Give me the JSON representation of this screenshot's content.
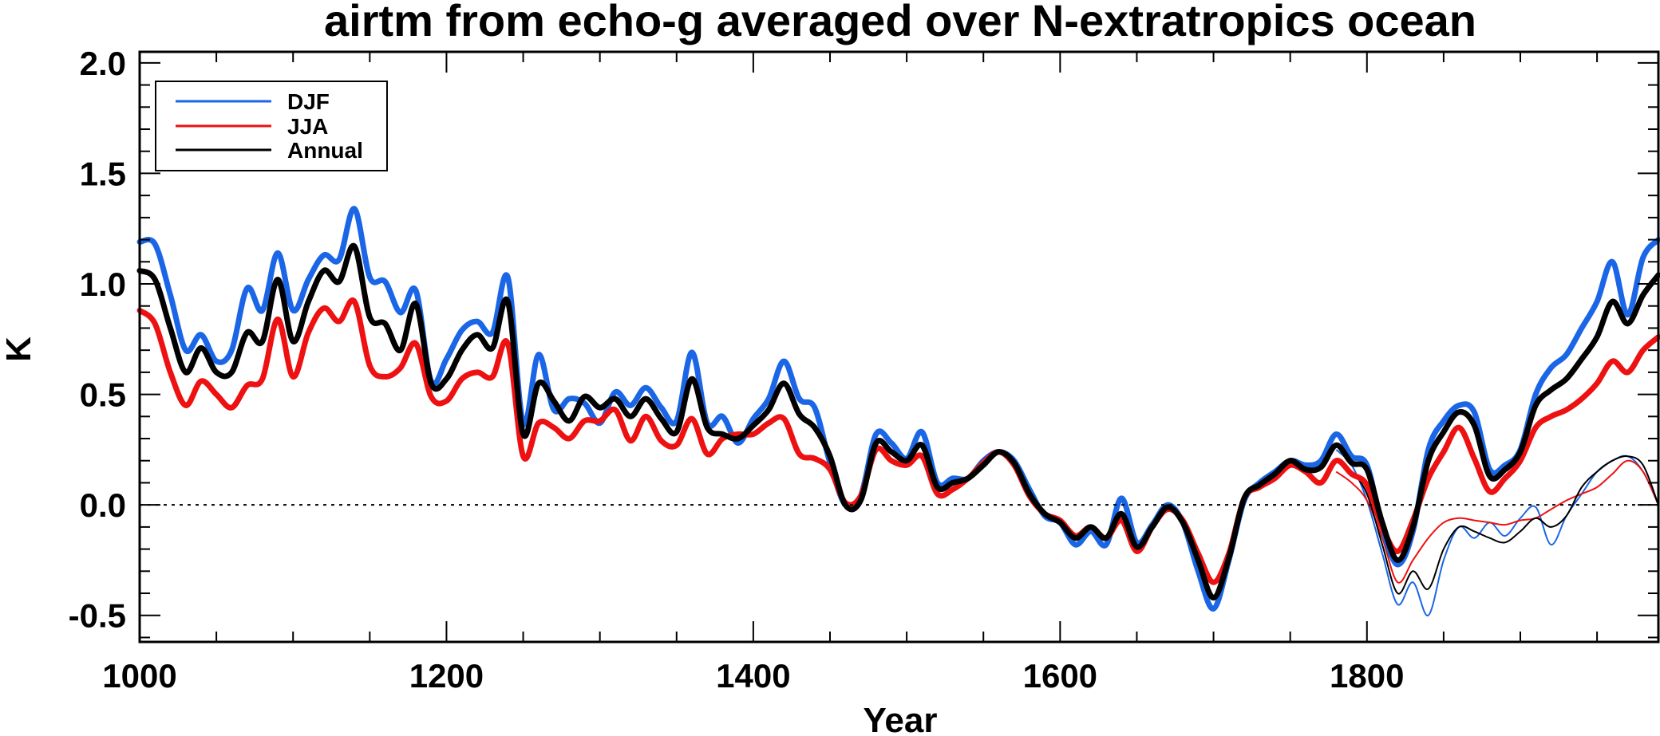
{
  "chart_data": {
    "type": "line",
    "title": "airtm from echo-g averaged over N-extratropics ocean",
    "xlabel": "Year",
    "ylabel": "K",
    "xlim": [
      1000,
      1990
    ],
    "ylim": [
      -0.62,
      2.05
    ],
    "x_ticks": [
      1000,
      1200,
      1400,
      1600,
      1800
    ],
    "x_tick_labels": [
      "1000",
      "1200",
      "1400",
      "1600",
      "1800"
    ],
    "y_ticks": [
      -0.5,
      0.0,
      0.5,
      1.0,
      1.5,
      2.0
    ],
    "y_tick_labels": [
      "-0.5",
      "0.0",
      "0.5",
      "1.0",
      "1.5",
      "2.0"
    ],
    "reference_line": 0.0,
    "legend": [
      "DJF",
      "JJA",
      "Annual"
    ],
    "legend_position": "top-left",
    "colors": {
      "DJF": "#1a66e6",
      "JJA": "#ee1111",
      "Annual": "#000000"
    },
    "x": [
      1000,
      1010,
      1020,
      1030,
      1040,
      1050,
      1060,
      1070,
      1080,
      1090,
      1100,
      1110,
      1120,
      1130,
      1140,
      1150,
      1160,
      1170,
      1180,
      1190,
      1200,
      1210,
      1220,
      1230,
      1240,
      1250,
      1260,
      1270,
      1280,
      1290,
      1300,
      1310,
      1320,
      1330,
      1340,
      1350,
      1360,
      1370,
      1380,
      1390,
      1400,
      1410,
      1420,
      1430,
      1440,
      1450,
      1460,
      1470,
      1480,
      1490,
      1500,
      1510,
      1520,
      1530,
      1540,
      1550,
      1560,
      1570,
      1580,
      1590,
      1600,
      1610,
      1620,
      1630,
      1640,
      1650,
      1660,
      1670,
      1680,
      1690,
      1700,
      1710,
      1720,
      1730,
      1740,
      1750,
      1760,
      1770,
      1780,
      1790,
      1800,
      1810,
      1820,
      1830,
      1840,
      1850,
      1860,
      1870,
      1880,
      1890,
      1900,
      1910,
      1920,
      1930,
      1940,
      1950,
      1960,
      1970,
      1980,
      1990
    ],
    "series": [
      {
        "name": "DJF",
        "width": "thick",
        "values": [
          1.19,
          1.18,
          0.95,
          0.7,
          0.77,
          0.65,
          0.7,
          0.98,
          0.88,
          1.14,
          0.88,
          1.02,
          1.13,
          1.11,
          1.34,
          1.03,
          1.01,
          0.87,
          0.97,
          0.56,
          0.66,
          0.79,
          0.83,
          0.78,
          1.03,
          0.37,
          0.68,
          0.43,
          0.48,
          0.46,
          0.37,
          0.51,
          0.45,
          0.53,
          0.44,
          0.38,
          0.69,
          0.37,
          0.4,
          0.28,
          0.39,
          0.48,
          0.65,
          0.48,
          0.44,
          0.19,
          0.0,
          0.04,
          0.32,
          0.28,
          0.21,
          0.33,
          0.1,
          0.12,
          0.12,
          0.2,
          0.24,
          0.2,
          0.07,
          -0.05,
          -0.08,
          -0.18,
          -0.12,
          -0.18,
          0.03,
          -0.17,
          -0.09,
          0.0,
          -0.08,
          -0.3,
          -0.47,
          -0.25,
          0.02,
          0.1,
          0.15,
          0.2,
          0.18,
          0.2,
          0.32,
          0.22,
          0.18,
          -0.1,
          -0.27,
          -0.12,
          0.25,
          0.38,
          0.45,
          0.42,
          0.16,
          0.18,
          0.25,
          0.5,
          0.62,
          0.68,
          0.8,
          0.92,
          1.1,
          0.86,
          1.12,
          1.2
        ]
      },
      {
        "name": "JJA",
        "width": "thick",
        "values": [
          0.88,
          0.82,
          0.6,
          0.45,
          0.56,
          0.5,
          0.44,
          0.54,
          0.57,
          0.84,
          0.58,
          0.78,
          0.89,
          0.83,
          0.92,
          0.63,
          0.58,
          0.62,
          0.73,
          0.49,
          0.47,
          0.57,
          0.6,
          0.58,
          0.73,
          0.22,
          0.37,
          0.35,
          0.3,
          0.38,
          0.38,
          0.43,
          0.29,
          0.4,
          0.29,
          0.27,
          0.39,
          0.23,
          0.3,
          0.32,
          0.32,
          0.37,
          0.39,
          0.23,
          0.21,
          0.16,
          0.01,
          0.04,
          0.25,
          0.2,
          0.18,
          0.22,
          0.05,
          0.07,
          0.12,
          0.19,
          0.24,
          0.18,
          0.04,
          -0.04,
          -0.07,
          -0.14,
          -0.1,
          -0.15,
          -0.07,
          -0.21,
          -0.1,
          -0.02,
          -0.07,
          -0.22,
          -0.35,
          -0.22,
          0.03,
          0.08,
          0.12,
          0.18,
          0.15,
          0.1,
          0.2,
          0.14,
          0.09,
          -0.1,
          -0.21,
          -0.07,
          0.12,
          0.24,
          0.35,
          0.21,
          0.06,
          0.12,
          0.2,
          0.35,
          0.4,
          0.43,
          0.48,
          0.55,
          0.65,
          0.6,
          0.7,
          0.76
        ]
      },
      {
        "name": "Annual",
        "width": "thick",
        "values": [
          1.06,
          1.02,
          0.8,
          0.6,
          0.71,
          0.6,
          0.6,
          0.78,
          0.74,
          1.02,
          0.74,
          0.92,
          1.06,
          1.01,
          1.17,
          0.85,
          0.82,
          0.7,
          0.91,
          0.55,
          0.57,
          0.7,
          0.77,
          0.71,
          0.92,
          0.32,
          0.55,
          0.47,
          0.38,
          0.49,
          0.44,
          0.48,
          0.4,
          0.48,
          0.39,
          0.33,
          0.57,
          0.35,
          0.32,
          0.3,
          0.36,
          0.43,
          0.55,
          0.41,
          0.35,
          0.22,
          0.0,
          0.02,
          0.28,
          0.24,
          0.2,
          0.27,
          0.08,
          0.1,
          0.12,
          0.18,
          0.24,
          0.19,
          0.05,
          -0.04,
          -0.08,
          -0.15,
          -0.1,
          -0.15,
          -0.04,
          -0.19,
          -0.1,
          -0.01,
          -0.08,
          -0.25,
          -0.42,
          -0.24,
          0.03,
          0.09,
          0.14,
          0.2,
          0.16,
          0.17,
          0.27,
          0.19,
          0.16,
          -0.08,
          -0.25,
          -0.1,
          0.2,
          0.33,
          0.42,
          0.36,
          0.13,
          0.16,
          0.24,
          0.45,
          0.52,
          0.57,
          0.66,
          0.76,
          0.92,
          0.82,
          0.95,
          1.04
        ]
      }
    ],
    "extra_series": [
      {
        "name": "DJF",
        "width": "thin",
        "x": [
          1780,
          1790,
          1800,
          1810,
          1820,
          1830,
          1840,
          1850,
          1860,
          1870,
          1880,
          1890,
          1900,
          1910,
          1920,
          1930,
          1940,
          1950,
          1960,
          1970,
          1980,
          1990
        ],
        "values": [
          0.25,
          0.18,
          0.02,
          -0.22,
          -0.45,
          -0.35,
          -0.5,
          -0.25,
          -0.1,
          -0.15,
          -0.08,
          -0.14,
          -0.06,
          -0.01,
          -0.18,
          -0.05,
          0.05,
          0.15,
          0.2,
          0.22,
          0.15,
          0.0
        ]
      },
      {
        "name": "JJA",
        "width": "thin",
        "x": [
          1780,
          1790,
          1800,
          1810,
          1820,
          1830,
          1840,
          1850,
          1860,
          1870,
          1880,
          1890,
          1900,
          1910,
          1920,
          1930,
          1940,
          1950,
          1960,
          1970,
          1980,
          1990
        ],
        "values": [
          0.15,
          0.1,
          0.02,
          -0.15,
          -0.35,
          -0.25,
          -0.15,
          -0.08,
          -0.06,
          -0.07,
          -0.08,
          -0.09,
          -0.07,
          -0.06,
          -0.02,
          0.02,
          0.05,
          0.08,
          0.14,
          0.2,
          0.15,
          0.0
        ]
      },
      {
        "name": "Annual",
        "width": "thin",
        "x": [
          1780,
          1790,
          1800,
          1810,
          1820,
          1830,
          1840,
          1850,
          1860,
          1870,
          1880,
          1890,
          1900,
          1910,
          1920,
          1930,
          1940,
          1950,
          1960,
          1970,
          1980,
          1990
        ],
        "values": [
          0.2,
          0.15,
          0.05,
          -0.18,
          -0.4,
          -0.3,
          -0.38,
          -0.2,
          -0.1,
          -0.12,
          -0.15,
          -0.17,
          -0.12,
          -0.06,
          -0.1,
          -0.05,
          0.08,
          0.15,
          0.2,
          0.22,
          0.18,
          0.0
        ]
      }
    ]
  }
}
